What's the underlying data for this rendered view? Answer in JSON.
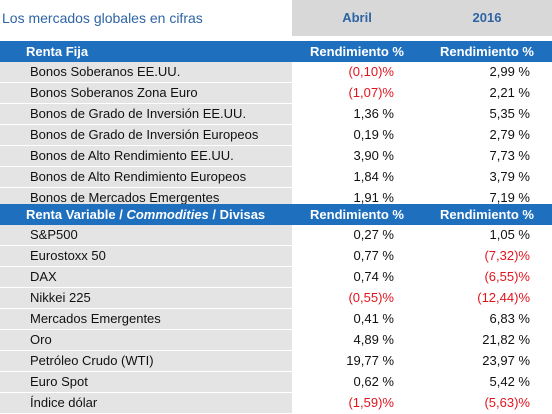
{
  "title": "Los mercados globales en cifras",
  "header": {
    "col1": "Abril",
    "col2": "2016"
  },
  "colors": {
    "accent": "#1f6fbf",
    "title_text": "#2e64a4",
    "negative": "#e1141e",
    "row_bg": "#e4e4e4",
    "header_bg": "#d8d8d8"
  },
  "sections": [
    {
      "label_parts": [
        {
          "text": "Renta Fija",
          "italic": false
        }
      ],
      "col1": "Rendimiento %",
      "col2": "Rendimiento %",
      "rows": [
        {
          "name": "Bonos Soberanos EE.UU.",
          "abril": "(0,10)%",
          "y2016": "2,99 %"
        },
        {
          "name": "Bonos Soberanos Zona Euro",
          "abril": "(1,07)%",
          "y2016": "2,21 %"
        },
        {
          "name": "Bonos de Grado de Inversión EE.UU.",
          "abril": "1,36 %",
          "y2016": "5,35 %"
        },
        {
          "name": "Bonos de Grado de Inversión Europeos",
          "abril": "0,19 %",
          "y2016": "2,79 %"
        },
        {
          "name": "Bonos de Alto Rendimiento EE.UU.",
          "abril": "3,90 %",
          "y2016": "7,73 %"
        },
        {
          "name": "Bonos de Alto Rendimiento Europeos",
          "abril": "1,84 %",
          "y2016": "3,79 %"
        },
        {
          "name": "Bonos de Mercados Emergentes",
          "abril": "1,91 %",
          "y2016": "7,19 %"
        }
      ]
    },
    {
      "label_parts": [
        {
          "text": "Renta Variable / ",
          "italic": false
        },
        {
          "text": "Commodities",
          "italic": true
        },
        {
          "text": " / Divisas",
          "italic": false
        }
      ],
      "col1": "Rendimiento %",
      "col2": "Rendimiento %",
      "rows": [
        {
          "name": "S&P500",
          "abril": "0,27 %",
          "y2016": "1,05 %"
        },
        {
          "name": "Eurostoxx 50",
          "abril": "0,77 %",
          "y2016": "(7,32)%"
        },
        {
          "name": "DAX",
          "abril": "0,74 %",
          "y2016": "(6,55)%"
        },
        {
          "name": "Nikkei 225",
          "abril": "(0,55)%",
          "y2016": "(12,44)%"
        },
        {
          "name": "Mercados Emergentes",
          "abril": "0,41 %",
          "y2016": "6,83 %"
        },
        {
          "name": "Oro",
          "abril": "4,89 %",
          "y2016": "21,82 %"
        },
        {
          "name": "Petróleo Crudo (WTI)",
          "abril": "19,77 %",
          "y2016": "23,97 %"
        },
        {
          "name": "Euro Spot",
          "abril": "0,62 %",
          "y2016": "5,42 %"
        },
        {
          "name": "Índice dólar",
          "abril": "(1,59)%",
          "y2016": "(5,63)%"
        }
      ]
    }
  ]
}
